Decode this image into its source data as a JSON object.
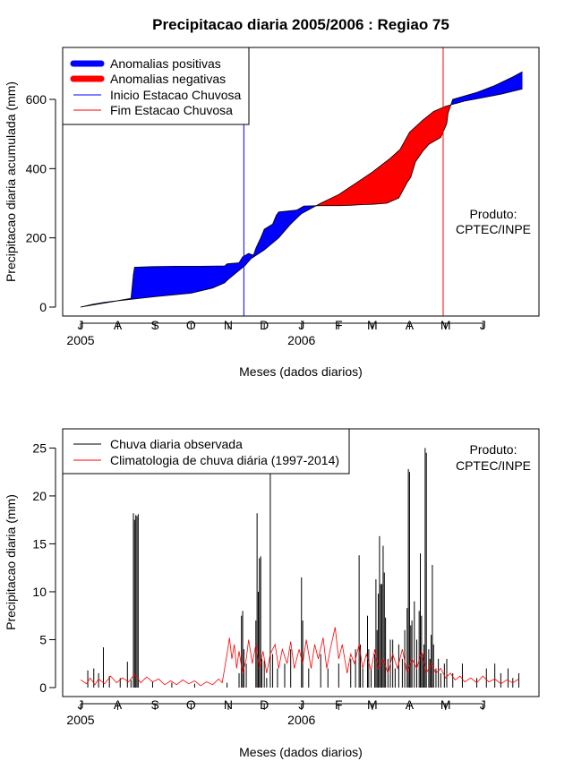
{
  "title": "Precipitacao diaria 2005/2006 : Regiao 75",
  "colors": {
    "positive": "#0000ff",
    "negative": "#ff0000",
    "start_line": "#0000ff",
    "end_line": "#ff0000",
    "observed": "#000000",
    "climatology": "#ff0000"
  },
  "chart_data": [
    {
      "type": "area",
      "name": "cumulative",
      "ylabel": "Precipitacao diaria acumulada (mm)",
      "xlabel": "Meses (dados diarios)",
      "ylim": [
        0,
        750
      ],
      "yticks": [
        0,
        200,
        400,
        600
      ],
      "month_ticks": [
        {
          "label": "J",
          "day": 0
        },
        {
          "label": "A",
          "day": 31
        },
        {
          "label": "S",
          "day": 62
        },
        {
          "label": "O",
          "day": 92
        },
        {
          "label": "N",
          "day": 123
        },
        {
          "label": "D",
          "day": 153
        },
        {
          "label": "J",
          "day": 184
        },
        {
          "label": "F",
          "day": 215
        },
        {
          "label": "M",
          "day": 243
        },
        {
          "label": "A",
          "day": 274
        },
        {
          "label": "M",
          "day": 304
        },
        {
          "label": "J",
          "day": 335
        }
      ],
      "year_labels": [
        {
          "label": "2005",
          "day": 0
        },
        {
          "label": "2006",
          "day": 184
        }
      ],
      "observed_cumulative": [
        [
          0,
          0
        ],
        [
          10,
          8
        ],
        [
          20,
          14
        ],
        [
          30,
          18
        ],
        [
          42,
          25
        ],
        [
          43,
          60
        ],
        [
          44,
          95
        ],
        [
          45,
          115
        ],
        [
          60,
          117
        ],
        [
          80,
          118
        ],
        [
          100,
          118
        ],
        [
          120,
          119
        ],
        [
          122,
          125
        ],
        [
          132,
          128
        ],
        [
          135,
          145
        ],
        [
          140,
          155
        ],
        [
          144,
          150
        ],
        [
          146,
          170
        ],
        [
          150,
          200
        ],
        [
          153,
          225
        ],
        [
          160,
          240
        ],
        [
          163,
          265
        ],
        [
          165,
          275
        ],
        [
          180,
          280
        ],
        [
          184,
          288
        ],
        [
          186,
          292
        ],
        [
          200,
          293
        ],
        [
          210,
          293
        ],
        [
          216,
          293
        ],
        [
          225,
          294
        ],
        [
          235,
          296
        ],
        [
          243,
          297
        ],
        [
          255,
          300
        ],
        [
          265,
          315
        ],
        [
          272,
          360
        ],
        [
          275,
          375
        ],
        [
          279,
          420
        ],
        [
          285,
          450
        ],
        [
          290,
          470
        ],
        [
          300,
          490
        ],
        [
          305,
          530
        ],
        [
          306,
          560
        ],
        [
          310,
          600
        ],
        [
          330,
          620
        ],
        [
          345,
          640
        ],
        [
          360,
          665
        ],
        [
          368,
          680
        ]
      ],
      "climatology_cumulative": [
        [
          0,
          0
        ],
        [
          31,
          18
        ],
        [
          62,
          30
        ],
        [
          92,
          40
        ],
        [
          110,
          55
        ],
        [
          120,
          70
        ],
        [
          123,
          80
        ],
        [
          130,
          100
        ],
        [
          137,
          120
        ],
        [
          142,
          140
        ],
        [
          153,
          165
        ],
        [
          165,
          200
        ],
        [
          175,
          240
        ],
        [
          184,
          270
        ],
        [
          200,
          300
        ],
        [
          215,
          325
        ],
        [
          228,
          355
        ],
        [
          243,
          390
        ],
        [
          258,
          430
        ],
        [
          266,
          455
        ],
        [
          270,
          480
        ],
        [
          274,
          505
        ],
        [
          285,
          540
        ],
        [
          294,
          565
        ],
        [
          304,
          580
        ],
        [
          320,
          595
        ],
        [
          335,
          605
        ],
        [
          350,
          615
        ],
        [
          368,
          630
        ]
      ],
      "season_start_day": 136,
      "season_end_day": 302,
      "legend": [
        "Anomalias positivas",
        "Anomalias negativas",
        "Inicio Estacao Chuvosa",
        "Fim Estacao Chuvosa"
      ],
      "annotation": [
        "Produto:",
        "CPTEC/INPE"
      ]
    },
    {
      "type": "bar",
      "name": "daily",
      "ylabel": "Precipitacao diaria (mm)",
      "xlabel": "Meses (dados diarios)",
      "ylim": [
        0,
        27
      ],
      "yticks": [
        0,
        5,
        10,
        15,
        20,
        25
      ],
      "month_ticks": [
        {
          "label": "J",
          "day": 0
        },
        {
          "label": "A",
          "day": 31
        },
        {
          "label": "S",
          "day": 62
        },
        {
          "label": "O",
          "day": 92
        },
        {
          "label": "N",
          "day": 123
        },
        {
          "label": "D",
          "day": 153
        },
        {
          "label": "J",
          "day": 184
        },
        {
          "label": "F",
          "day": 215
        },
        {
          "label": "M",
          "day": 243
        },
        {
          "label": "A",
          "day": 274
        },
        {
          "label": "M",
          "day": 304
        },
        {
          "label": "J",
          "day": 335
        }
      ],
      "year_labels": [
        {
          "label": "2005",
          "day": 0
        },
        {
          "label": "2006",
          "day": 184
        }
      ],
      "observed_daily": [
        [
          6,
          1.8
        ],
        [
          11,
          2.0
        ],
        [
          15,
          1.5
        ],
        [
          19,
          4.2
        ],
        [
          24,
          1.2
        ],
        [
          33,
          1.0
        ],
        [
          39,
          2.7
        ],
        [
          42,
          0.8
        ],
        [
          44,
          18.2
        ],
        [
          45,
          17.5
        ],
        [
          46,
          18.0
        ],
        [
          47,
          17.9
        ],
        [
          48,
          18.1
        ],
        [
          60,
          0.6
        ],
        [
          76,
          0.5
        ],
        [
          95,
          0.4
        ],
        [
          122,
          0.5
        ],
        [
          132,
          1.5
        ],
        [
          134,
          7.5
        ],
        [
          135,
          8.0
        ],
        [
          136,
          4.0
        ],
        [
          138,
          2.5
        ],
        [
          146,
          7.0
        ],
        [
          147,
          18.2
        ],
        [
          148,
          10.0
        ],
        [
          149,
          13.5
        ],
        [
          150,
          13.7
        ],
        [
          151,
          3.0
        ],
        [
          153,
          2.8
        ],
        [
          155,
          1.0
        ],
        [
          158,
          23.0
        ],
        [
          160,
          3.5
        ],
        [
          164,
          2.0
        ],
        [
          170,
          2.5
        ],
        [
          175,
          4.0
        ],
        [
          184,
          11.5
        ],
        [
          185,
          7.0
        ],
        [
          190,
          2.0
        ],
        [
          200,
          3.5
        ],
        [
          206,
          2.0
        ],
        [
          215,
          2.5
        ],
        [
          225,
          3.0
        ],
        [
          229,
          4.0
        ],
        [
          232,
          13.8
        ],
        [
          233,
          4.5
        ],
        [
          235,
          2.0
        ],
        [
          239,
          7.5
        ],
        [
          240,
          4.0
        ],
        [
          242,
          2.0
        ],
        [
          245,
          3.5
        ],
        [
          246,
          11.3
        ],
        [
          247,
          6.0
        ],
        [
          248,
          9.8
        ],
        [
          249,
          15.8
        ],
        [
          250,
          10.8
        ],
        [
          251,
          10.8
        ],
        [
          252,
          14.8
        ],
        [
          253,
          12.0
        ],
        [
          254,
          7.3
        ],
        [
          256,
          3.0
        ],
        [
          258,
          5.0
        ],
        [
          260,
          5.0
        ],
        [
          262,
          2.0
        ],
        [
          265,
          4.5
        ],
        [
          268,
          3.0
        ],
        [
          270,
          6.0
        ],
        [
          272,
          8.3
        ],
        [
          273,
          22.8
        ],
        [
          274,
          22.5
        ],
        [
          275,
          6.5
        ],
        [
          276,
          7.0
        ],
        [
          278,
          9.0
        ],
        [
          280,
          5.0
        ],
        [
          282,
          8.0
        ],
        [
          283,
          14.0
        ],
        [
          284,
          7.5
        ],
        [
          285,
          3.5
        ],
        [
          286,
          4.5
        ],
        [
          287,
          25.0
        ],
        [
          288,
          24.5
        ],
        [
          290,
          4.0
        ],
        [
          291,
          3.0
        ],
        [
          292,
          5.5
        ],
        [
          293,
          12.8
        ],
        [
          294,
          4.5
        ],
        [
          296,
          2.0
        ],
        [
          298,
          3.0
        ],
        [
          300,
          1.5
        ],
        [
          303,
          2.5
        ],
        [
          305,
          3.0
        ],
        [
          310,
          1.5
        ],
        [
          318,
          2.5
        ],
        [
          330,
          1.0
        ],
        [
          338,
          2.0
        ],
        [
          345,
          2.5
        ],
        [
          350,
          1.5
        ],
        [
          356,
          2.0
        ],
        [
          360,
          1.0
        ],
        [
          365,
          1.5
        ]
      ],
      "climatology_daily": [
        [
          0,
          0.8
        ],
        [
          5,
          0.4
        ],
        [
          8,
          1.0
        ],
        [
          12,
          0.3
        ],
        [
          15,
          0.9
        ],
        [
          20,
          0.4
        ],
        [
          25,
          1.2
        ],
        [
          30,
          0.5
        ],
        [
          35,
          1.0
        ],
        [
          40,
          0.6
        ],
        [
          45,
          1.4
        ],
        [
          50,
          0.5
        ],
        [
          55,
          1.1
        ],
        [
          60,
          0.6
        ],
        [
          65,
          0.9
        ],
        [
          70,
          0.3
        ],
        [
          75,
          0.7
        ],
        [
          80,
          0.3
        ],
        [
          85,
          0.8
        ],
        [
          90,
          0.4
        ],
        [
          95,
          0.7
        ],
        [
          100,
          0.2
        ],
        [
          105,
          0.6
        ],
        [
          110,
          0.3
        ],
        [
          115,
          0.9
        ],
        [
          118,
          0.5
        ],
        [
          120,
          2.0
        ],
        [
          122,
          3.5
        ],
        [
          124,
          5.2
        ],
        [
          126,
          3.0
        ],
        [
          128,
          4.5
        ],
        [
          130,
          2.0
        ],
        [
          132,
          3.8
        ],
        [
          135,
          1.5
        ],
        [
          138,
          3.0
        ],
        [
          140,
          5.0
        ],
        [
          143,
          2.5
        ],
        [
          146,
          4.5
        ],
        [
          149,
          2.0
        ],
        [
          152,
          3.8
        ],
        [
          155,
          1.5
        ],
        [
          158,
          3.5
        ],
        [
          162,
          4.5
        ],
        [
          165,
          2.0
        ],
        [
          168,
          4.0
        ],
        [
          172,
          2.5
        ],
        [
          175,
          4.8
        ],
        [
          178,
          2.0
        ],
        [
          182,
          4.0
        ],
        [
          185,
          2.5
        ],
        [
          188,
          5.0
        ],
        [
          192,
          2.0
        ],
        [
          195,
          4.5
        ],
        [
          198,
          3.0
        ],
        [
          202,
          5.2
        ],
        [
          205,
          2.0
        ],
        [
          208,
          4.0
        ],
        [
          212,
          6.3
        ],
        [
          215,
          3.0
        ],
        [
          218,
          4.5
        ],
        [
          222,
          1.5
        ],
        [
          225,
          3.5
        ],
        [
          228,
          2.5
        ],
        [
          232,
          4.5
        ],
        [
          235,
          2.0
        ],
        [
          238,
          3.5
        ],
        [
          242,
          1.8
        ],
        [
          245,
          4.0
        ],
        [
          248,
          2.0
        ],
        [
          252,
          3.0
        ],
        [
          256,
          1.5
        ],
        [
          260,
          3.5
        ],
        [
          264,
          2.0
        ],
        [
          268,
          4.0
        ],
        [
          272,
          1.5
        ],
        [
          276,
          3.0
        ],
        [
          280,
          2.0
        ],
        [
          284,
          3.8
        ],
        [
          288,
          1.5
        ],
        [
          292,
          2.5
        ],
        [
          296,
          1.5
        ],
        [
          300,
          2.0
        ],
        [
          304,
          1.0
        ],
        [
          308,
          1.5
        ],
        [
          312,
          0.8
        ],
        [
          316,
          1.2
        ],
        [
          320,
          0.6
        ],
        [
          325,
          1.0
        ],
        [
          330,
          0.5
        ],
        [
          335,
          1.2
        ],
        [
          340,
          0.6
        ],
        [
          345,
          0.9
        ],
        [
          350,
          0.4
        ],
        [
          355,
          0.8
        ],
        [
          360,
          0.5
        ],
        [
          365,
          0.9
        ]
      ],
      "legend": [
        "Chuva diaria observada",
        "Climatologia de chuva diária (1997-2014)"
      ],
      "annotation": [
        "Produto:",
        "CPTEC/INPE"
      ]
    }
  ]
}
